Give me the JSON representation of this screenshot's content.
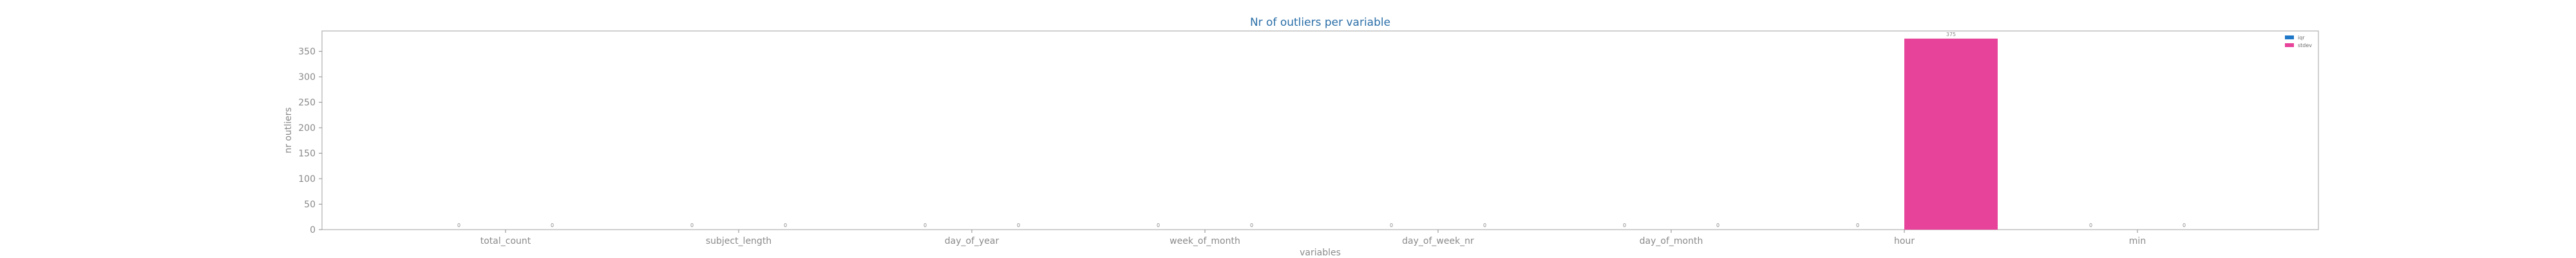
{
  "chart_data": {
    "type": "bar",
    "title": "Nr of outliers per variable",
    "xlabel": "variables",
    "ylabel": "nr outliers",
    "categories": [
      "total_count",
      "subject_length",
      "day_of_year",
      "week_of_month",
      "day_of_week_nr",
      "day_of_month",
      "hour",
      "min"
    ],
    "series": [
      {
        "name": "iqr",
        "color": "#1f77c8",
        "values": [
          0,
          0,
          0,
          0,
          0,
          0,
          0,
          0
        ]
      },
      {
        "name": "stdev",
        "color": "#e8439a",
        "values": [
          0,
          0,
          0,
          0,
          0,
          0,
          375,
          0
        ]
      }
    ],
    "ylim": [
      0,
      390
    ],
    "yticks": [
      0,
      50,
      100,
      150,
      200,
      250,
      300,
      350
    ],
    "grid": false,
    "legend_position": "top-right"
  }
}
